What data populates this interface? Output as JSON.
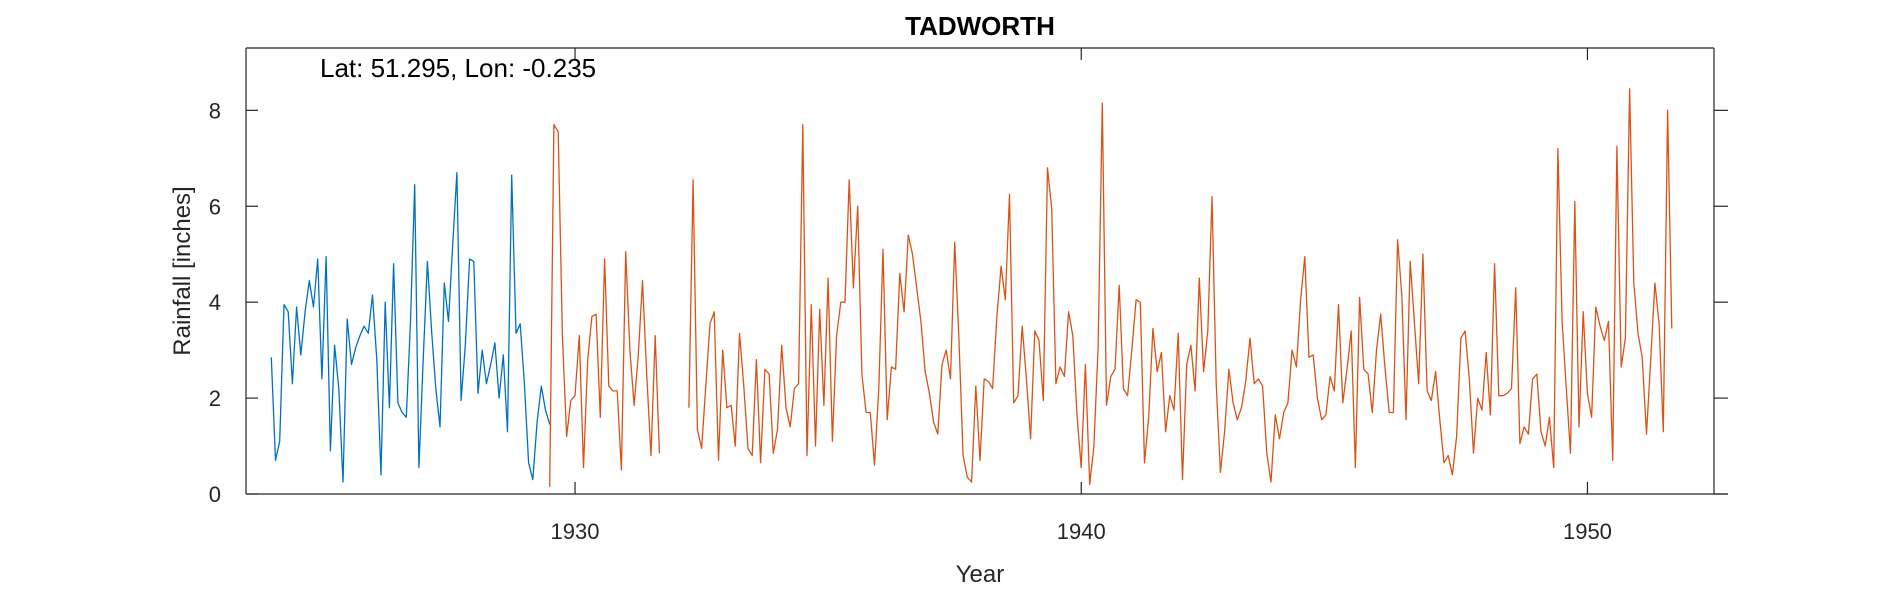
{
  "chart_data": {
    "type": "line",
    "title": "TADWORTH",
    "xlabel": "Year",
    "ylabel": "Rainfall [inches]",
    "annotation": "Lat: 51.295, Lon: -0.235",
    "xlim": [
      1923.5,
      1952.5
    ],
    "ylim": [
      0,
      9.3
    ],
    "x_ticks": [
      1930,
      1940,
      1950
    ],
    "x_tick_labels": [
      "1930",
      "1940",
      "1950"
    ],
    "y_ticks": [
      0,
      2,
      4,
      6,
      8
    ],
    "y_tick_labels": [
      "0",
      "2",
      "4",
      "6",
      "8"
    ],
    "grid": false,
    "step": 0.08333,
    "series": [
      {
        "color": "#0072BD",
        "segments": [
          {
            "start": 1924.0,
            "values": [
              2.85,
              0.7,
              1.1,
              3.95,
              3.8,
              2.3,
              3.9,
              2.9,
              3.8,
              4.45,
              3.9,
              4.9,
              2.4,
              4.95,
              0.9,
              3.1,
              2.2,
              0.25,
              3.65,
              2.7,
              3.05,
              3.3,
              3.5,
              3.35,
              4.15,
              2.8,
              0.4,
              4.0,
              1.8,
              4.8,
              1.9,
              1.7,
              1.6,
              3.6,
              6.45,
              0.55,
              2.8,
              4.85,
              3.4,
              2.2,
              1.4,
              4.4,
              3.6,
              5.2,
              6.7,
              1.95,
              3.1,
              4.9,
              4.85,
              2.1,
              3.0,
              2.3,
              2.7,
              3.15,
              2.0,
              2.9,
              1.3,
              6.65,
              3.35,
              3.55,
              2.3,
              0.65,
              0.3,
              1.5,
              2.25,
              1.75,
              1.45
            ]
          }
        ]
      },
      {
        "color": "#D95319",
        "segments": [
          {
            "start": 1929.5,
            "values": [
              0.15,
              7.7,
              7.55,
              3.3,
              1.2,
              1.95,
              2.05,
              3.3,
              0.55,
              2.8,
              3.7,
              3.75,
              1.6,
              4.9,
              2.25,
              2.15,
              2.15,
              0.5,
              5.05,
              3.0,
              1.85,
              2.9,
              4.45,
              2.5,
              0.8,
              3.3,
              0.85
            ]
          },
          {
            "start": 1932.25,
            "values": [
              1.8,
              6.55,
              1.35,
              0.95,
              2.25,
              3.55,
              3.8,
              0.7,
              3.0,
              1.8,
              1.85,
              1.0,
              3.35,
              2.25,
              0.95,
              0.8,
              2.8,
              0.65,
              2.6,
              2.5,
              0.85,
              1.35,
              3.1,
              1.8,
              1.4,
              2.2,
              2.3,
              7.7,
              0.8,
              3.95,
              1.0,
              3.85,
              1.85,
              4.5,
              1.1,
              3.3,
              4.0,
              4.0,
              6.55,
              4.3,
              6.0,
              2.5,
              1.7,
              1.7,
              0.6,
              2.2,
              5.1,
              1.55,
              2.65,
              2.6,
              4.6,
              3.8,
              5.4,
              5.0,
              4.3,
              3.6,
              2.55,
              2.1,
              1.5,
              1.25,
              2.7,
              3.0,
              2.4,
              5.25,
              3.25,
              0.8,
              0.35,
              0.25,
              2.25,
              0.7,
              2.4,
              2.35,
              2.2,
              3.7,
              4.75,
              4.05,
              6.25,
              1.9,
              2.05,
              3.5,
              2.4,
              1.15,
              3.4,
              3.2,
              1.95,
              6.8,
              5.95,
              2.3,
              2.65,
              2.45,
              3.8,
              3.3,
              1.65,
              0.55,
              2.7,
              0.2,
              1.0,
              3.05,
              8.15,
              1.85,
              2.45,
              2.6,
              4.35,
              2.2,
              2.05,
              3.0,
              4.05,
              4.0,
              0.65,
              1.6,
              3.45,
              2.55,
              2.95,
              1.3,
              2.05,
              1.75,
              3.35,
              0.3,
              2.7,
              3.1,
              2.15,
              4.5,
              2.55,
              3.4,
              6.2,
              2.3,
              0.45,
              1.3,
              2.6,
              1.9,
              1.55,
              1.8,
              2.35,
              3.25,
              2.3,
              2.4,
              2.25,
              0.85,
              0.25,
              1.65,
              1.15,
              1.7,
              1.9,
              3.0,
              2.65,
              4.05,
              4.95,
              2.85,
              2.9,
              2.0,
              1.55,
              1.65,
              2.45,
              2.15,
              3.95,
              1.9,
              2.6,
              3.4,
              0.55,
              4.1,
              2.6,
              2.5,
              1.7,
              3.0,
              3.75,
              2.65,
              1.7,
              1.7,
              5.3,
              4.15,
              1.55,
              4.85,
              3.55,
              2.3,
              5.0,
              2.15,
              1.95,
              2.55,
              1.55,
              0.65,
              0.8,
              0.4,
              1.2,
              3.25,
              3.4,
              2.4,
              0.85,
              2.0,
              1.75,
              2.95,
              1.65,
              4.8,
              2.05,
              2.05,
              2.1,
              2.2,
              4.3,
              1.05,
              1.4,
              1.25,
              2.4,
              2.5,
              1.3,
              1.0,
              1.6,
              0.55,
              7.2,
              3.6,
              2.2,
              0.85,
              6.1,
              1.4,
              3.8,
              2.1,
              1.6,
              3.9,
              3.5,
              3.2,
              3.6,
              0.7,
              7.25,
              2.65,
              3.25,
              8.45,
              4.4,
              3.35,
              2.85,
              1.25,
              2.8,
              4.4,
              3.55,
              1.3,
              8.0,
              3.45
            ]
          }
        ]
      }
    ]
  }
}
